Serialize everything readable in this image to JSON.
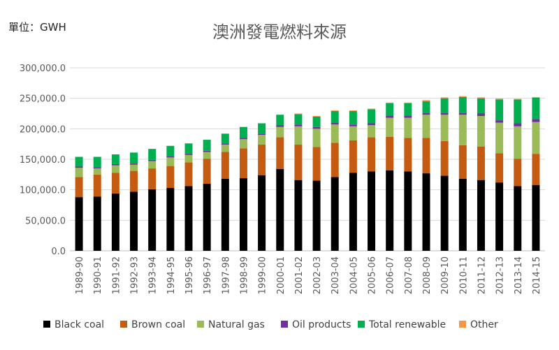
{
  "header": {
    "unit_label": "單位：GWH",
    "title": "澳洲發電燃料來源"
  },
  "chart_data": {
    "type": "bar",
    "stacked": true,
    "title": "澳洲發電燃料來源",
    "unit": "單位：GWH",
    "ylim": [
      0,
      300000
    ],
    "yticks": [
      "0.0",
      "50,000.0",
      "100,000.0",
      "150,000.0",
      "200,000.0",
      "250,000.0",
      "300,000.0"
    ],
    "grid": true,
    "legend_position": "bottom",
    "categories": [
      "1989-90",
      "1990-91",
      "1991-92",
      "1992-93",
      "1993-94",
      "1994-95",
      "1995-96",
      "1996-97",
      "1997-98",
      "1998-99",
      "1999-00",
      "2000-01",
      "2001-02",
      "2002-03",
      "2003-04",
      "2004-05",
      "2005-06",
      "2006-07",
      "2007-08",
      "2008-09",
      "2009-10",
      "2010-11",
      "2011-12",
      "2012-13",
      "2013-14",
      "2014-15"
    ],
    "series": [
      {
        "name": "Black coal",
        "color": "#000000",
        "values": [
          88000,
          89000,
          94000,
          97000,
          101000,
          103000,
          106000,
          110000,
          118000,
          119000,
          124000,
          134000,
          116000,
          115000,
          121000,
          128000,
          130000,
          132000,
          130000,
          127000,
          123000,
          118000,
          116000,
          112000,
          106000,
          108000
        ]
      },
      {
        "name": "Brown coal",
        "color": "#c55a11",
        "values": [
          33000,
          36000,
          34000,
          34000,
          34000,
          36000,
          39000,
          41000,
          44000,
          49000,
          50000,
          52000,
          58000,
          55000,
          56000,
          53000,
          56000,
          55000,
          55000,
          58000,
          57000,
          55000,
          55000,
          48000,
          45000,
          51000
        ]
      },
      {
        "name": "Natural gas",
        "color": "#9bbb59",
        "values": [
          15000,
          10000,
          12000,
          10000,
          12000,
          14000,
          12000,
          11000,
          12000,
          15000,
          16000,
          17000,
          30000,
          30000,
          30000,
          23000,
          20000,
          31000,
          33000,
          38000,
          43000,
          50000,
          50000,
          50000,
          53000,
          52000
        ]
      },
      {
        "name": "Oil products",
        "color": "#7030a0",
        "values": [
          2000,
          2000,
          2000,
          2000,
          2000,
          2000,
          2000,
          2000,
          2000,
          2000,
          2000,
          3000,
          3000,
          3000,
          3000,
          3000,
          3000,
          3000,
          3000,
          3000,
          3000,
          3000,
          4000,
          4000,
          5000,
          5000
        ]
      },
      {
        "name": "Total renewable",
        "color": "#00b050",
        "values": [
          16000,
          17000,
          16000,
          18000,
          18000,
          17000,
          17000,
          18000,
          16000,
          18000,
          17000,
          17000,
          17000,
          17000,
          19000,
          22000,
          23000,
          21000,
          21000,
          19000,
          24000,
          26000,
          25000,
          34000,
          39000,
          35000
        ]
      },
      {
        "name": "Other",
        "color": "#f79646",
        "values": [
          0,
          0,
          0,
          0,
          0,
          0,
          0,
          0,
          0,
          0,
          0,
          0,
          1000,
          1000,
          1000,
          1000,
          1000,
          1000,
          1000,
          2000,
          1500,
          1500,
          1500,
          1500,
          1000,
          1000
        ]
      }
    ]
  }
}
